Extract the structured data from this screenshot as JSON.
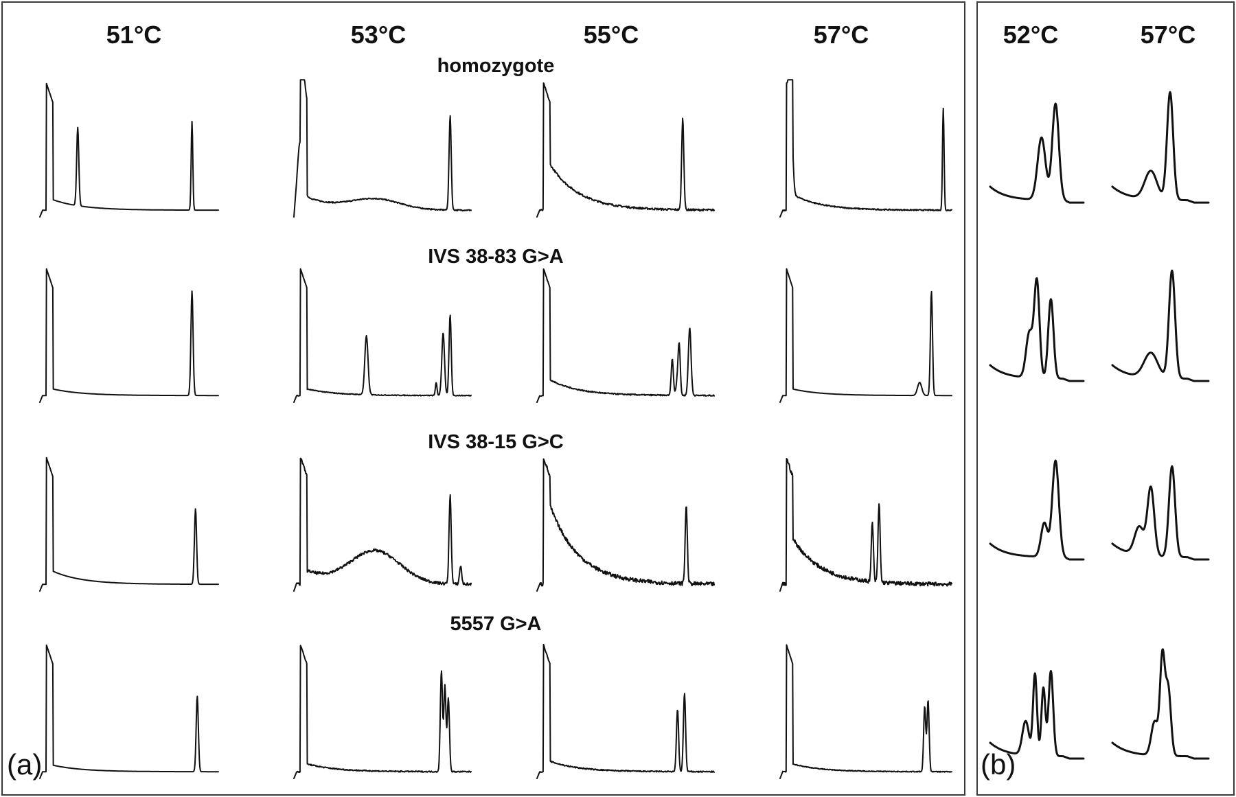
{
  "chart_data": [
    {
      "type": "line",
      "panel_label": "(a)",
      "column_labels": [
        "51°C",
        "53°C",
        "55°C",
        "57°C"
      ],
      "row_labels": [
        "homozygote",
        "IVS 38-83 G>A",
        "IVS 38-15 G>C",
        "5557 G>A"
      ],
      "axes_shown": false,
      "grid": false
    },
    {
      "type": "line",
      "panel_label": "(b)",
      "column_labels": [
        "52°C",
        "57°C"
      ],
      "row_labels": [],
      "axes_shown": false,
      "grid": false
    }
  ],
  "colors": {
    "trace": "#111111",
    "border": "#3a3a3a",
    "background": "#ffffff"
  }
}
